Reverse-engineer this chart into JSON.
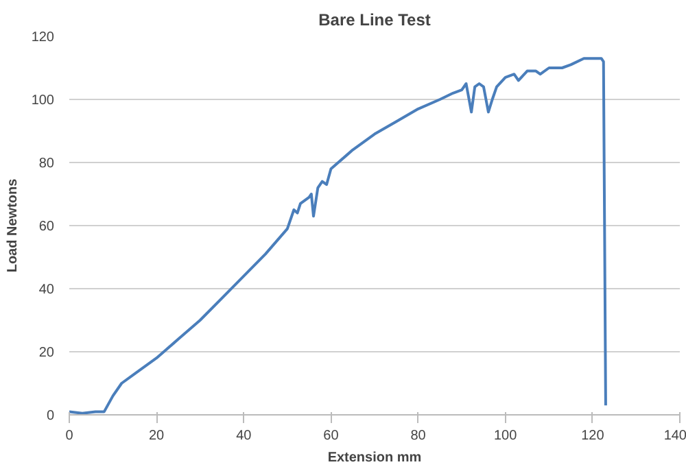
{
  "chart_data": {
    "type": "line",
    "title": "Bare Line Test",
    "xlabel": "Extension mm",
    "ylabel": "Load Newtons",
    "x": [
      0,
      3,
      6,
      8,
      10,
      12,
      15,
      20,
      25,
      30,
      35,
      40,
      45,
      50,
      51.5,
      52.3,
      53,
      55,
      55.5,
      56,
      57,
      58,
      59,
      60,
      65,
      70,
      75,
      80,
      85,
      88,
      90,
      91,
      92.2,
      93,
      94,
      95,
      96.1,
      97,
      98,
      100,
      102,
      103,
      105,
      107,
      108,
      110,
      113,
      115,
      118,
      122,
      122.5,
      123
    ],
    "series": [
      {
        "color": "#4a7ebb",
        "values": [
          1,
          0.5,
          1,
          1,
          6,
          10,
          13,
          18,
          24,
          30,
          37,
          44,
          51,
          59,
          65,
          64,
          67,
          69,
          70,
          63,
          72,
          74,
          73,
          78,
          84,
          89,
          93,
          97,
          100,
          102,
          103,
          105,
          96,
          104,
          105,
          104,
          96,
          100,
          104,
          107,
          108,
          106,
          109,
          109,
          108,
          110,
          110,
          111,
          113,
          113,
          112,
          3
        ]
      }
    ],
    "xlim": [
      0,
      140
    ],
    "xticks": [
      0,
      20,
      40,
      60,
      80,
      100,
      120,
      140
    ],
    "ylim": [
      0,
      120
    ],
    "yticks": [
      0,
      20,
      40,
      60,
      80,
      100,
      120
    ],
    "grid": "y",
    "marker": "none",
    "line_style": "solid"
  }
}
